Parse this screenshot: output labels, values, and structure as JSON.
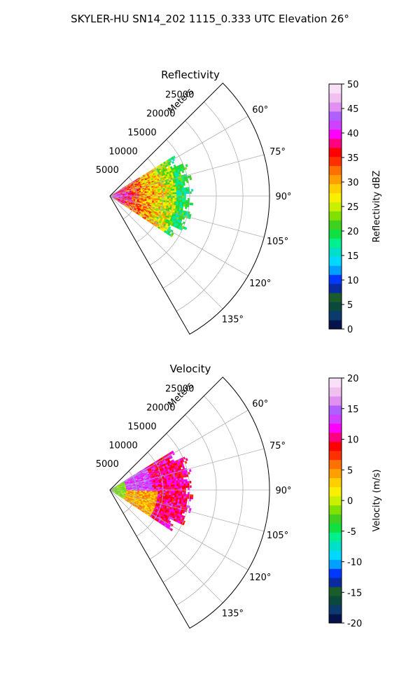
{
  "suptitle": "SKYLER-HU  SN14_202  1115_0.333 UTC Elevation 26°",
  "chart_data": [
    {
      "type": "heatmap",
      "subtype": "polar-sector",
      "title": "Reflectivity",
      "radial_label": "Meters",
      "radial_ticks": [
        "5000",
        "10000",
        "15000",
        "20000",
        "25000"
      ],
      "rmax": 30000,
      "angle_range": [
        45,
        150
      ],
      "angle_ticks": [
        "60°",
        "75°",
        "90°",
        "105°",
        "120°",
        "135°"
      ],
      "data_extent": {
        "range_max_m": 15500,
        "azimuth_deg": [
          58,
          122
        ]
      },
      "colorbar": {
        "label": "Reflectivity dBZ",
        "range": [
          0,
          50
        ],
        "ticks": [
          "0",
          "5",
          "10",
          "15",
          "20",
          "25",
          "30",
          "35",
          "40",
          "45",
          "50"
        ]
      },
      "colormap": [
        "#06124c",
        "#0b3a6e",
        "#0a4a3a",
        "#1a5c2a",
        "#0a2aa0",
        "#0038ff",
        "#00a0ff",
        "#00d8ff",
        "#00e0c8",
        "#00f090",
        "#10e040",
        "#40d020",
        "#80e000",
        "#c8f000",
        "#f8f000",
        "#ffd000",
        "#ffa000",
        "#ff7000",
        "#ff3000",
        "#ff0000",
        "#ff0080",
        "#ff00ff",
        "#d040ff",
        "#b060ff",
        "#e090f0",
        "#f0c0f0",
        "#f8e0f8"
      ],
      "grid": true
    },
    {
      "type": "heatmap",
      "subtype": "polar-sector",
      "title": "Velocity",
      "radial_label": "Meters",
      "radial_ticks": [
        "5000",
        "10000",
        "15000",
        "20000",
        "25000"
      ],
      "rmax": 30000,
      "angle_range": [
        45,
        150
      ],
      "angle_ticks": [
        "60°",
        "75°",
        "90°",
        "105°",
        "120°",
        "135°"
      ],
      "data_extent": {
        "range_max_m": 15500,
        "azimuth_deg": [
          58,
          122
        ]
      },
      "colorbar": {
        "label": "Velocity (m/s)",
        "range": [
          -20,
          20
        ],
        "ticks": [
          "-20",
          "-15",
          "-10",
          "-5",
          "0",
          "5",
          "10",
          "15",
          "20"
        ]
      },
      "colormap": [
        "#06124c",
        "#0b3a6e",
        "#0a4a3a",
        "#1a5c2a",
        "#0a2aa0",
        "#0038ff",
        "#00a0ff",
        "#00d8ff",
        "#00e0c8",
        "#00f090",
        "#10e040",
        "#40d020",
        "#80e000",
        "#c8f000",
        "#f8f000",
        "#ffd000",
        "#ffa000",
        "#ff7000",
        "#ff3000",
        "#ff0000",
        "#ff0080",
        "#ff00ff",
        "#d040ff",
        "#b060ff",
        "#e090f0",
        "#f0c0f0",
        "#f8e0f8"
      ],
      "grid": true
    }
  ]
}
